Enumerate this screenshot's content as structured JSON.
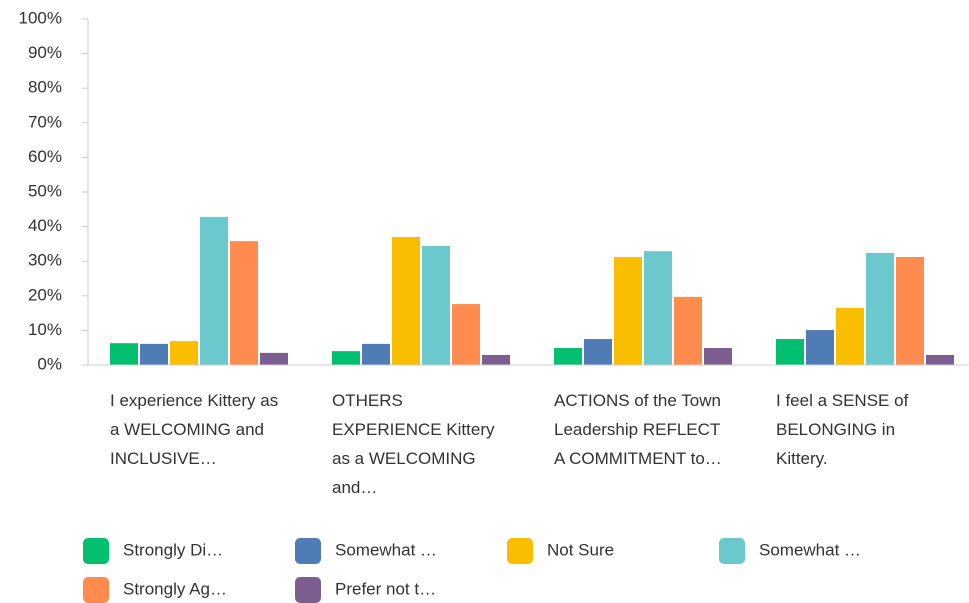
{
  "chart_data": {
    "type": "bar",
    "categories": [
      "I experience Kittery as a WELCOMING and INCLUSIVE…",
      "OTHERS EXPERIENCE Kittery as a WELCOMING and…",
      "ACTIONS of the Town Leadership REFLECT A COMMITMENT to…",
      "I feel a SENSE of BELONGING in Kittery."
    ],
    "series": [
      {
        "name": "Strongly Di…",
        "color": "#00bf6f",
        "values": [
          6.3,
          4.0,
          4.9,
          7.5
        ]
      },
      {
        "name": "Somewhat …",
        "color": "#507cb6",
        "values": [
          6.1,
          6.1,
          7.5,
          10.1
        ]
      },
      {
        "name": "Not Sure",
        "color": "#f9be00",
        "values": [
          6.9,
          37.0,
          31.2,
          16.5
        ]
      },
      {
        "name": "Somewhat …",
        "color": "#6bc8cd",
        "values": [
          42.8,
          34.4,
          32.9,
          32.4
        ]
      },
      {
        "name": "Strongly Ag…",
        "color": "#ff8b4f",
        "values": [
          35.8,
          17.6,
          19.7,
          31.2
        ]
      },
      {
        "name": "Prefer not t…",
        "color": "#7d5e90",
        "values": [
          3.5,
          2.9,
          4.9,
          2.9
        ]
      }
    ],
    "ylim": [
      0,
      100
    ],
    "yticks": [
      {
        "value": 0,
        "label": "0%"
      },
      {
        "value": 10,
        "label": "10%"
      },
      {
        "value": 20,
        "label": "20%"
      },
      {
        "value": 30,
        "label": "30%"
      },
      {
        "value": 40,
        "label": "40%"
      },
      {
        "value": 50,
        "label": "50%"
      },
      {
        "value": 60,
        "label": "60%"
      },
      {
        "value": 70,
        "label": "70%"
      },
      {
        "value": 80,
        "label": "80%"
      },
      {
        "value": 90,
        "label": "90%"
      },
      {
        "value": 100,
        "label": "100%"
      }
    ],
    "grid": false,
    "legend": "bottom"
  }
}
